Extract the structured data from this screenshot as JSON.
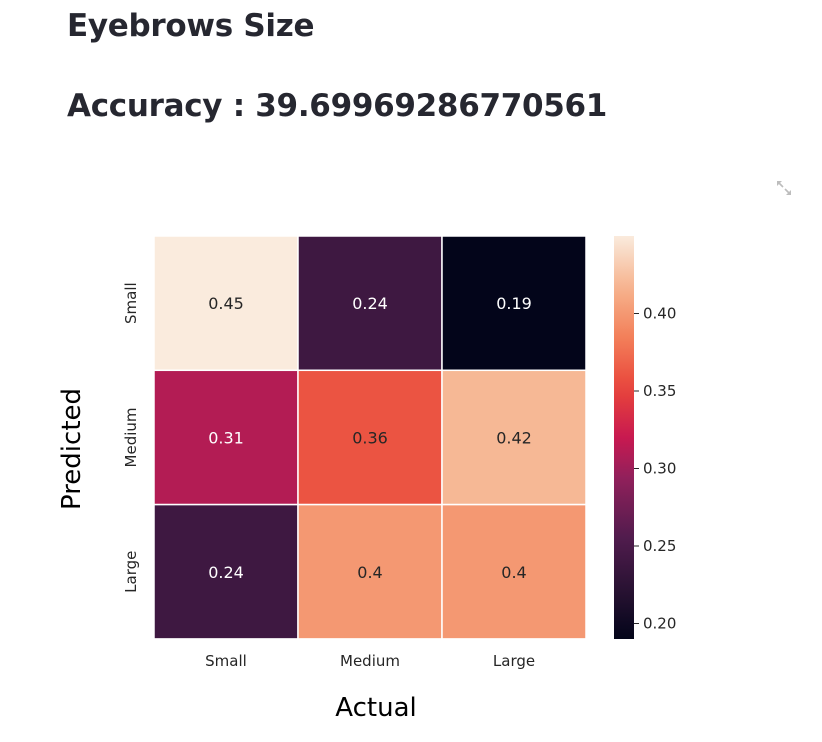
{
  "header": {
    "title": "Eyebrows Size",
    "accuracy_text": "Accuracy : 39.69969286770561"
  },
  "toolbar": {
    "expand_icon": "fullscreen-expand-icon"
  },
  "chart_data": {
    "type": "heatmap",
    "x_categories": [
      "Small",
      "Medium",
      "Large"
    ],
    "y_categories": [
      "Small",
      "Medium",
      "Large"
    ],
    "values": [
      [
        0.45,
        0.24,
        0.19
      ],
      [
        0.31,
        0.36,
        0.42
      ],
      [
        0.24,
        0.4,
        0.4
      ]
    ],
    "annotations": [
      [
        "0.45",
        "0.24",
        "0.19"
      ],
      [
        "0.31",
        "0.36",
        "0.42"
      ],
      [
        "0.24",
        "0.4",
        "0.4"
      ]
    ],
    "xlabel": "Actual",
    "ylabel": "Predicted",
    "colormap": "rocket",
    "colorbar": {
      "vmin": 0.19,
      "vmax": 0.45,
      "ticks": [
        0.2,
        0.25,
        0.3,
        0.35,
        0.4
      ],
      "tick_labels": [
        "0.20",
        "0.25",
        "0.30",
        "0.35",
        "0.40"
      ]
    },
    "grid_line_color": "#ffffff"
  }
}
